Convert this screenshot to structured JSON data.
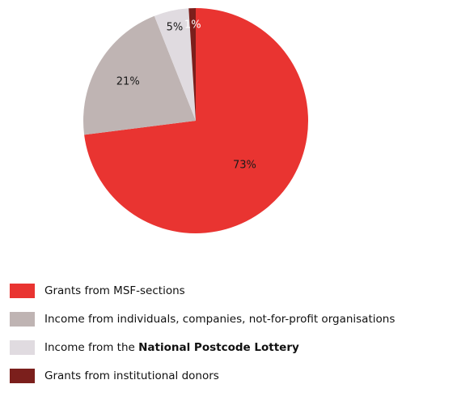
{
  "chart_data": {
    "type": "pie",
    "slices": [
      {
        "label": "73%",
        "value": 73,
        "color": "#e93431"
      },
      {
        "label": "21%",
        "value": 21,
        "color": "#bfb4b3"
      },
      {
        "label": "5%",
        "value": 5,
        "color": "#e0dbe0"
      },
      {
        "label": "1%",
        "value": 1,
        "color": "#7b1f1c"
      }
    ],
    "legend": [
      {
        "text": "Grants from MSF-sections",
        "bold": "",
        "color": "#e93431"
      },
      {
        "text": "Income from individuals, companies, not-for-profit organisations",
        "bold": "",
        "color": "#bfb4b3"
      },
      {
        "text": "Income from the ",
        "bold": "National Postcode Lottery",
        "color": "#e0dbe0"
      },
      {
        "text": "Grants from institutional donors",
        "bold": "",
        "color": "#7b1f1c"
      }
    ],
    "legend_placement": "bottom-left"
  }
}
